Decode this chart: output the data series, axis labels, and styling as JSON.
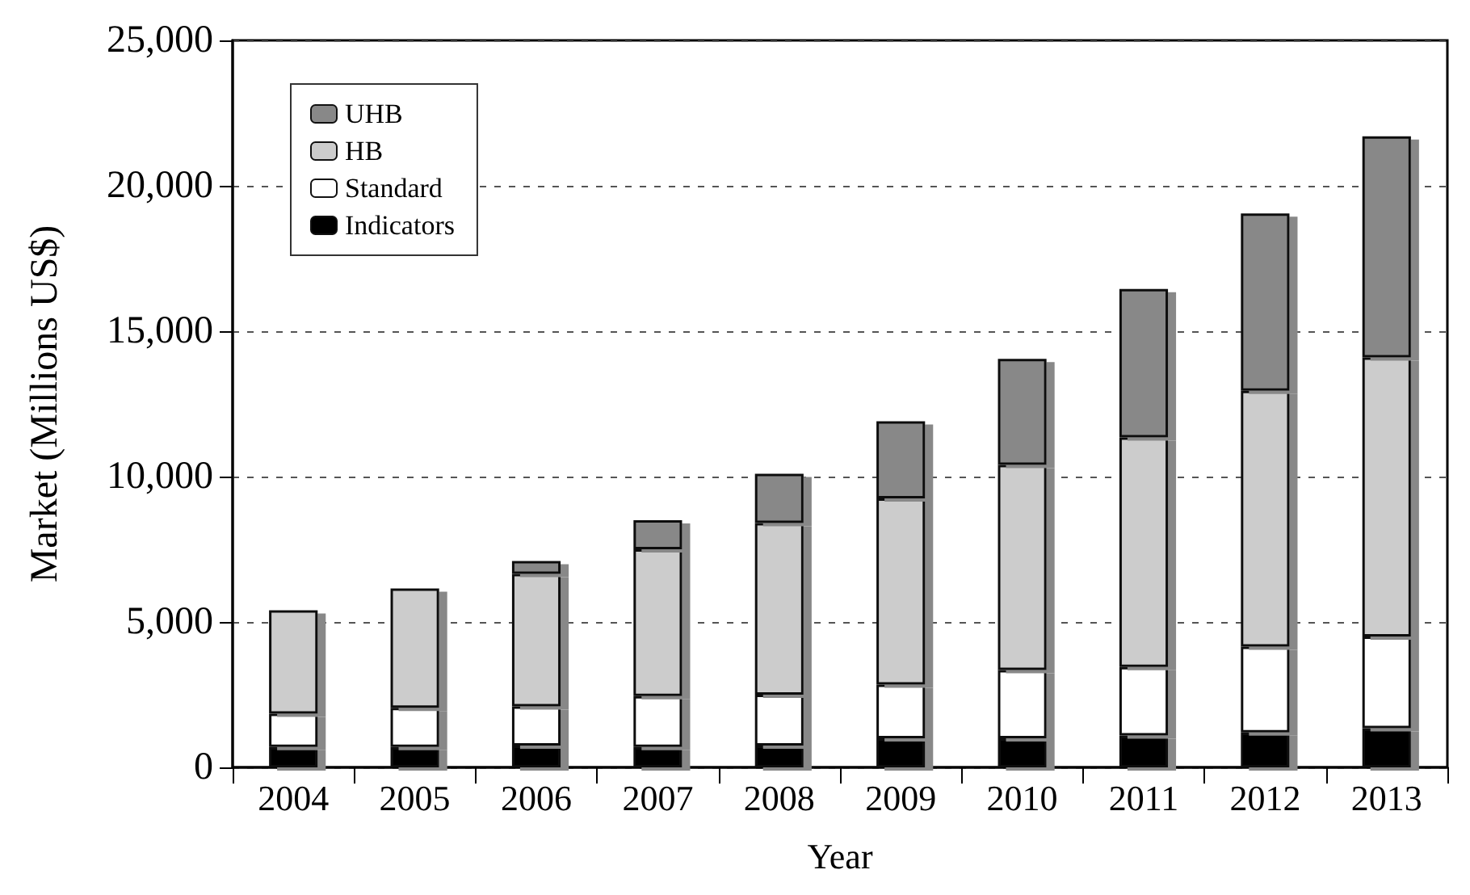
{
  "chart_data": {
    "type": "bar",
    "stacked": true,
    "xlabel": "Year",
    "ylabel": "Market (Millions US$)",
    "categories": [
      "2004",
      "2005",
      "2006",
      "2007",
      "2008",
      "2009",
      "2010",
      "2011",
      "2012",
      "2013"
    ],
    "series": [
      {
        "name": "Indicators",
        "color": "#000000",
        "values": [
          700,
          700,
          750,
          700,
          750,
          1000,
          1000,
          1100,
          1200,
          1350
        ]
      },
      {
        "name": "Standard",
        "color": "#ffffff",
        "values": [
          1150,
          1350,
          1350,
          1750,
          1750,
          1850,
          2350,
          2350,
          2950,
          3150
        ]
      },
      {
        "name": "HB",
        "color": "#cccccc",
        "values": [
          3550,
          4100,
          4550,
          5050,
          5900,
          6400,
          7050,
          7900,
          8800,
          9600
        ]
      },
      {
        "name": "UHB",
        "color": "#888888",
        "values": [
          null,
          null,
          450,
          1000,
          1700,
          2650,
          3650,
          5100,
          6100,
          7600
        ]
      }
    ],
    "ylim": [
      0,
      25000
    ],
    "yticks": [
      {
        "value": 0,
        "label": "0"
      },
      {
        "value": 5000,
        "label": "5,000"
      },
      {
        "value": 10000,
        "label": "10,000"
      },
      {
        "value": 15000,
        "label": "15,000"
      },
      {
        "value": 20000,
        "label": "20,000"
      },
      {
        "value": 25000,
        "label": "25,000"
      }
    ],
    "grid": "y",
    "legend": "top left"
  }
}
